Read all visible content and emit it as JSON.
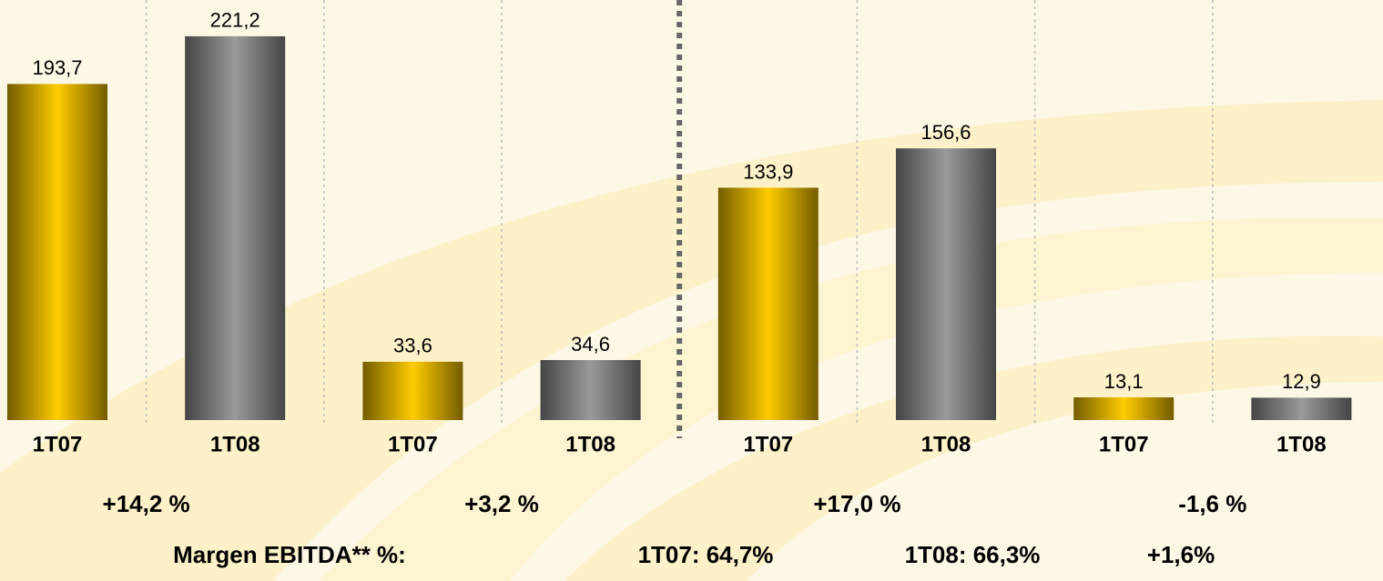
{
  "chart_data": {
    "type": "bar",
    "categories": [
      "1T07",
      "1T08",
      "1T07",
      "1T08",
      "1T07",
      "1T08",
      "1T07",
      "1T08"
    ],
    "values": [
      193.7,
      221.2,
      33.6,
      34.6,
      133.9,
      156.6,
      13.1,
      12.9
    ],
    "value_labels": [
      "193,7",
      "221,2",
      "33,6",
      "34,6",
      "133,9",
      "156,6",
      "13,1",
      "12,9"
    ],
    "colors": [
      "#ffcc00",
      "#9a9a9a",
      "#ffcc00",
      "#9a9a9a",
      "#ffcc00",
      "#9a9a9a",
      "#ffcc00",
      "#9a9a9a"
    ],
    "ylim": [
      0,
      240
    ],
    "annotations": [
      "+14,2 %",
      "+3,2 %",
      "+17,0 %",
      "-1,6 %"
    ],
    "footer": [
      "Margen EBITDA** %:",
      "1T07: 64,7%",
      "1T08: 66,3%",
      "+1,6%"
    ]
  }
}
